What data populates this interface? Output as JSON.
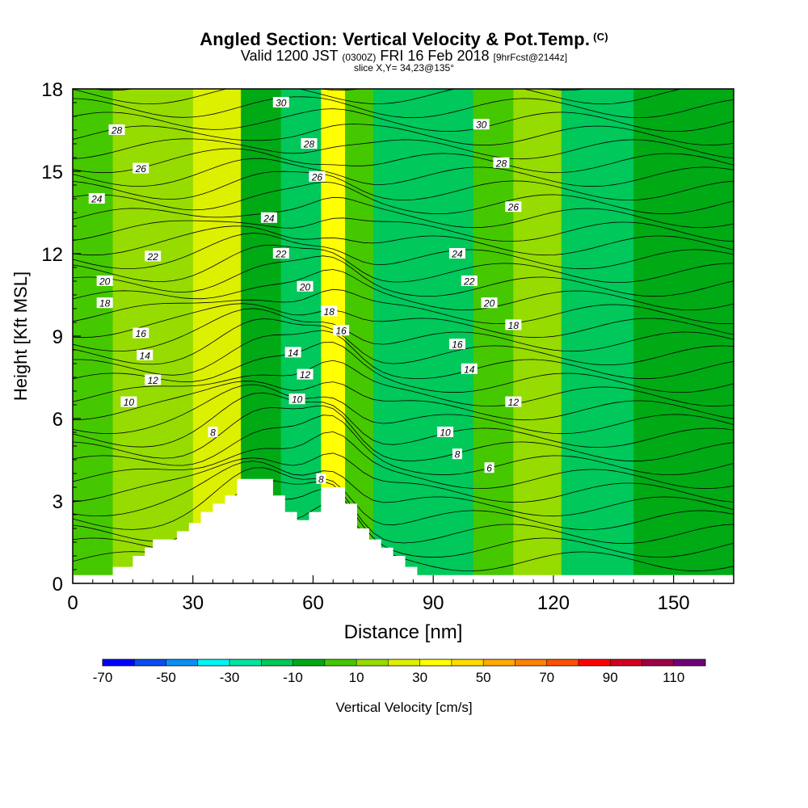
{
  "title": {
    "main": "Angled Section: Vertical Velocity & Pot.Temp.",
    "corner_tag": "(C)",
    "valid_prefix": "Valid 1200 JST",
    "valid_utc": "(0300Z)",
    "valid_date": "FRI 16 Feb 2018",
    "forecast_tag": "[9hrFcst@2144z]",
    "slice": "slice X,Y= 34,23@135°"
  },
  "chart_data": {
    "type": "heatmap",
    "xlabel": "Distance [nm]",
    "ylabel": "Height [Kft MSL]",
    "xlim": [
      0,
      165
    ],
    "ylim": [
      0,
      18
    ],
    "x_ticks": [
      0,
      30,
      60,
      90,
      120,
      150
    ],
    "y_ticks": [
      0,
      3,
      6,
      9,
      12,
      15,
      18
    ],
    "colorbar": {
      "label": "Vertical Velocity [cm/s]",
      "tick_labels": [
        -70,
        -50,
        -30,
        -10,
        10,
        30,
        50,
        70,
        90,
        110
      ],
      "bounds": [
        -70,
        -60,
        -50,
        -40,
        -30,
        -20,
        -10,
        0,
        10,
        20,
        30,
        40,
        50,
        60,
        70,
        80,
        90,
        100,
        110,
        120
      ],
      "colors": [
        "#0000ff",
        "#0a4cf0",
        "#0a8ff5",
        "#00f5f5",
        "#00e6a0",
        "#00c85a",
        "#00aa14",
        "#46c800",
        "#96dc00",
        "#dcf000",
        "#ffff00",
        "#ffdc00",
        "#ffaa00",
        "#ff8200",
        "#ff5000",
        "#ff0000",
        "#d2001e",
        "#a00046",
        "#6e0078"
      ]
    },
    "shading_bands_cm_s": [
      {
        "x_range": [
          0,
          10
        ],
        "value": 5
      },
      {
        "x_range": [
          10,
          30
        ],
        "value": 10
      },
      {
        "x_range": [
          30,
          42
        ],
        "value": 25
      },
      {
        "x_range": [
          42,
          52
        ],
        "value": -5
      },
      {
        "x_range": [
          52,
          62
        ],
        "value": -15
      },
      {
        "x_range": [
          62,
          68
        ],
        "value": 30
      },
      {
        "x_range": [
          68,
          75
        ],
        "value": 5
      },
      {
        "x_range": [
          75,
          100
        ],
        "value": -15
      },
      {
        "x_range": [
          100,
          110
        ],
        "value": 0
      },
      {
        "x_range": [
          110,
          122
        ],
        "value": 12
      },
      {
        "x_range": [
          122,
          140
        ],
        "value": -15
      },
      {
        "x_range": [
          140,
          165
        ],
        "value": -5
      }
    ],
    "theta_contour_labels": [
      {
        "x": 11,
        "y": 16.5,
        "v": "28"
      },
      {
        "x": 17,
        "y": 15.1,
        "v": "26"
      },
      {
        "x": 6,
        "y": 14.0,
        "v": "24"
      },
      {
        "x": 20,
        "y": 11.9,
        "v": "22"
      },
      {
        "x": 8,
        "y": 11.0,
        "v": "20"
      },
      {
        "x": 8,
        "y": 10.2,
        "v": "18"
      },
      {
        "x": 17,
        "y": 9.1,
        "v": "16"
      },
      {
        "x": 18,
        "y": 8.3,
        "v": "14"
      },
      {
        "x": 20,
        "y": 7.4,
        "v": "12"
      },
      {
        "x": 14,
        "y": 6.6,
        "v": "10"
      },
      {
        "x": 35,
        "y": 5.5,
        "v": "8"
      },
      {
        "x": 52,
        "y": 17.5,
        "v": "30"
      },
      {
        "x": 59,
        "y": 16.0,
        "v": "28"
      },
      {
        "x": 61,
        "y": 14.8,
        "v": "26"
      },
      {
        "x": 49,
        "y": 13.3,
        "v": "24"
      },
      {
        "x": 52,
        "y": 12.0,
        "v": "22"
      },
      {
        "x": 58,
        "y": 10.8,
        "v": "20"
      },
      {
        "x": 64,
        "y": 9.9,
        "v": "18"
      },
      {
        "x": 67,
        "y": 9.2,
        "v": "16"
      },
      {
        "x": 55,
        "y": 8.4,
        "v": "14"
      },
      {
        "x": 58,
        "y": 7.6,
        "v": "12"
      },
      {
        "x": 56,
        "y": 6.7,
        "v": "10"
      },
      {
        "x": 62,
        "y": 3.8,
        "v": "8"
      },
      {
        "x": 102,
        "y": 16.7,
        "v": "30"
      },
      {
        "x": 107,
        "y": 15.3,
        "v": "28"
      },
      {
        "x": 110,
        "y": 13.7,
        "v": "26"
      },
      {
        "x": 96,
        "y": 12.0,
        "v": "24"
      },
      {
        "x": 99,
        "y": 11.0,
        "v": "22"
      },
      {
        "x": 104,
        "y": 10.2,
        "v": "20"
      },
      {
        "x": 110,
        "y": 9.4,
        "v": "18"
      },
      {
        "x": 96,
        "y": 8.7,
        "v": "16"
      },
      {
        "x": 99,
        "y": 7.8,
        "v": "14"
      },
      {
        "x": 110,
        "y": 6.6,
        "v": "12"
      },
      {
        "x": 93,
        "y": 5.5,
        "v": "10"
      },
      {
        "x": 96,
        "y": 4.7,
        "v": "8"
      },
      {
        "x": 104,
        "y": 4.2,
        "v": "6"
      }
    ]
  }
}
